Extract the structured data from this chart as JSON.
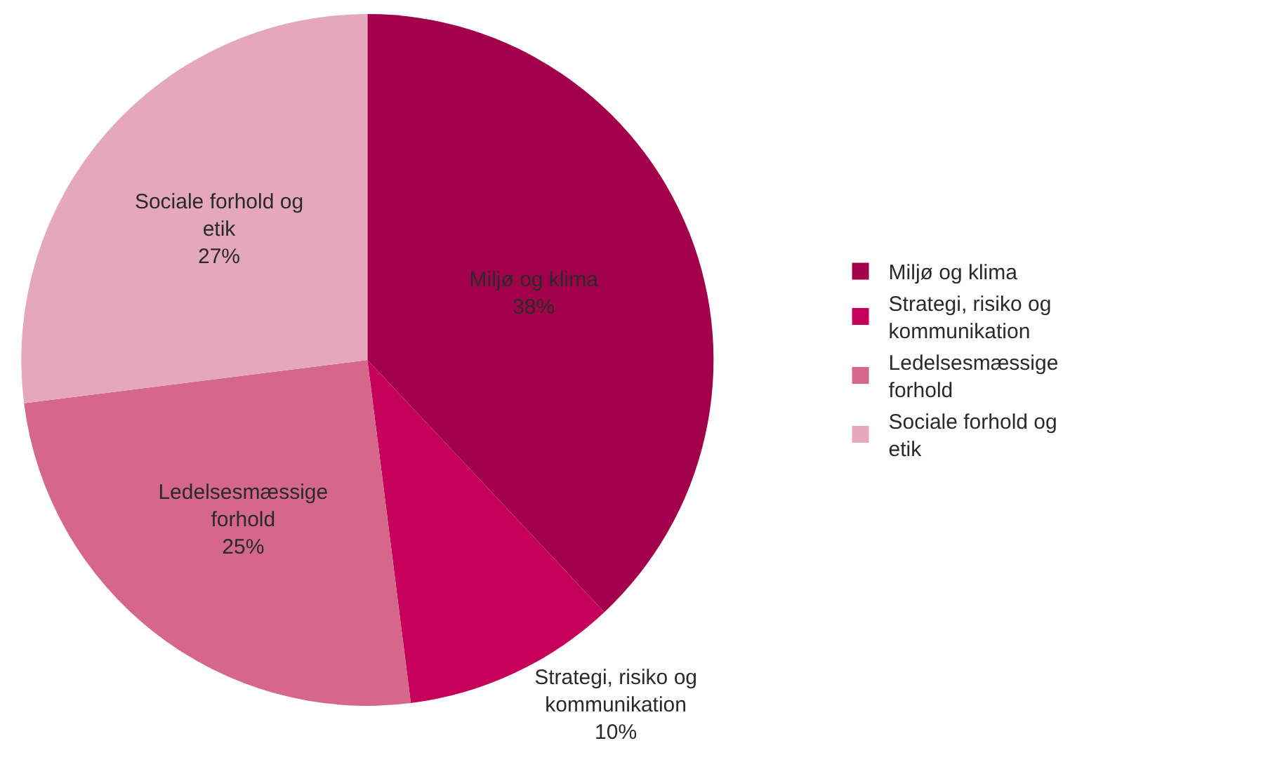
{
  "chart_data": {
    "type": "pie",
    "categories": [
      "Miljø og klima",
      "Strategi, risiko og kommunikation",
      "Ledelsesmæssige forhold",
      "Sociale forhold og etik"
    ],
    "values": [
      38,
      10,
      25,
      27
    ],
    "colors": [
      "#a3004b",
      "#c4005a",
      "#d4678a",
      "#e5a7ba"
    ],
    "value_labels": [
      "Miljø og klima\n38%",
      "Strategi, risiko og\nkommunikation\n10%",
      "Ledelsesmæssige\nforhold\n25%",
      "Sociale forhold og\netik\n27%"
    ],
    "legend": "right"
  }
}
